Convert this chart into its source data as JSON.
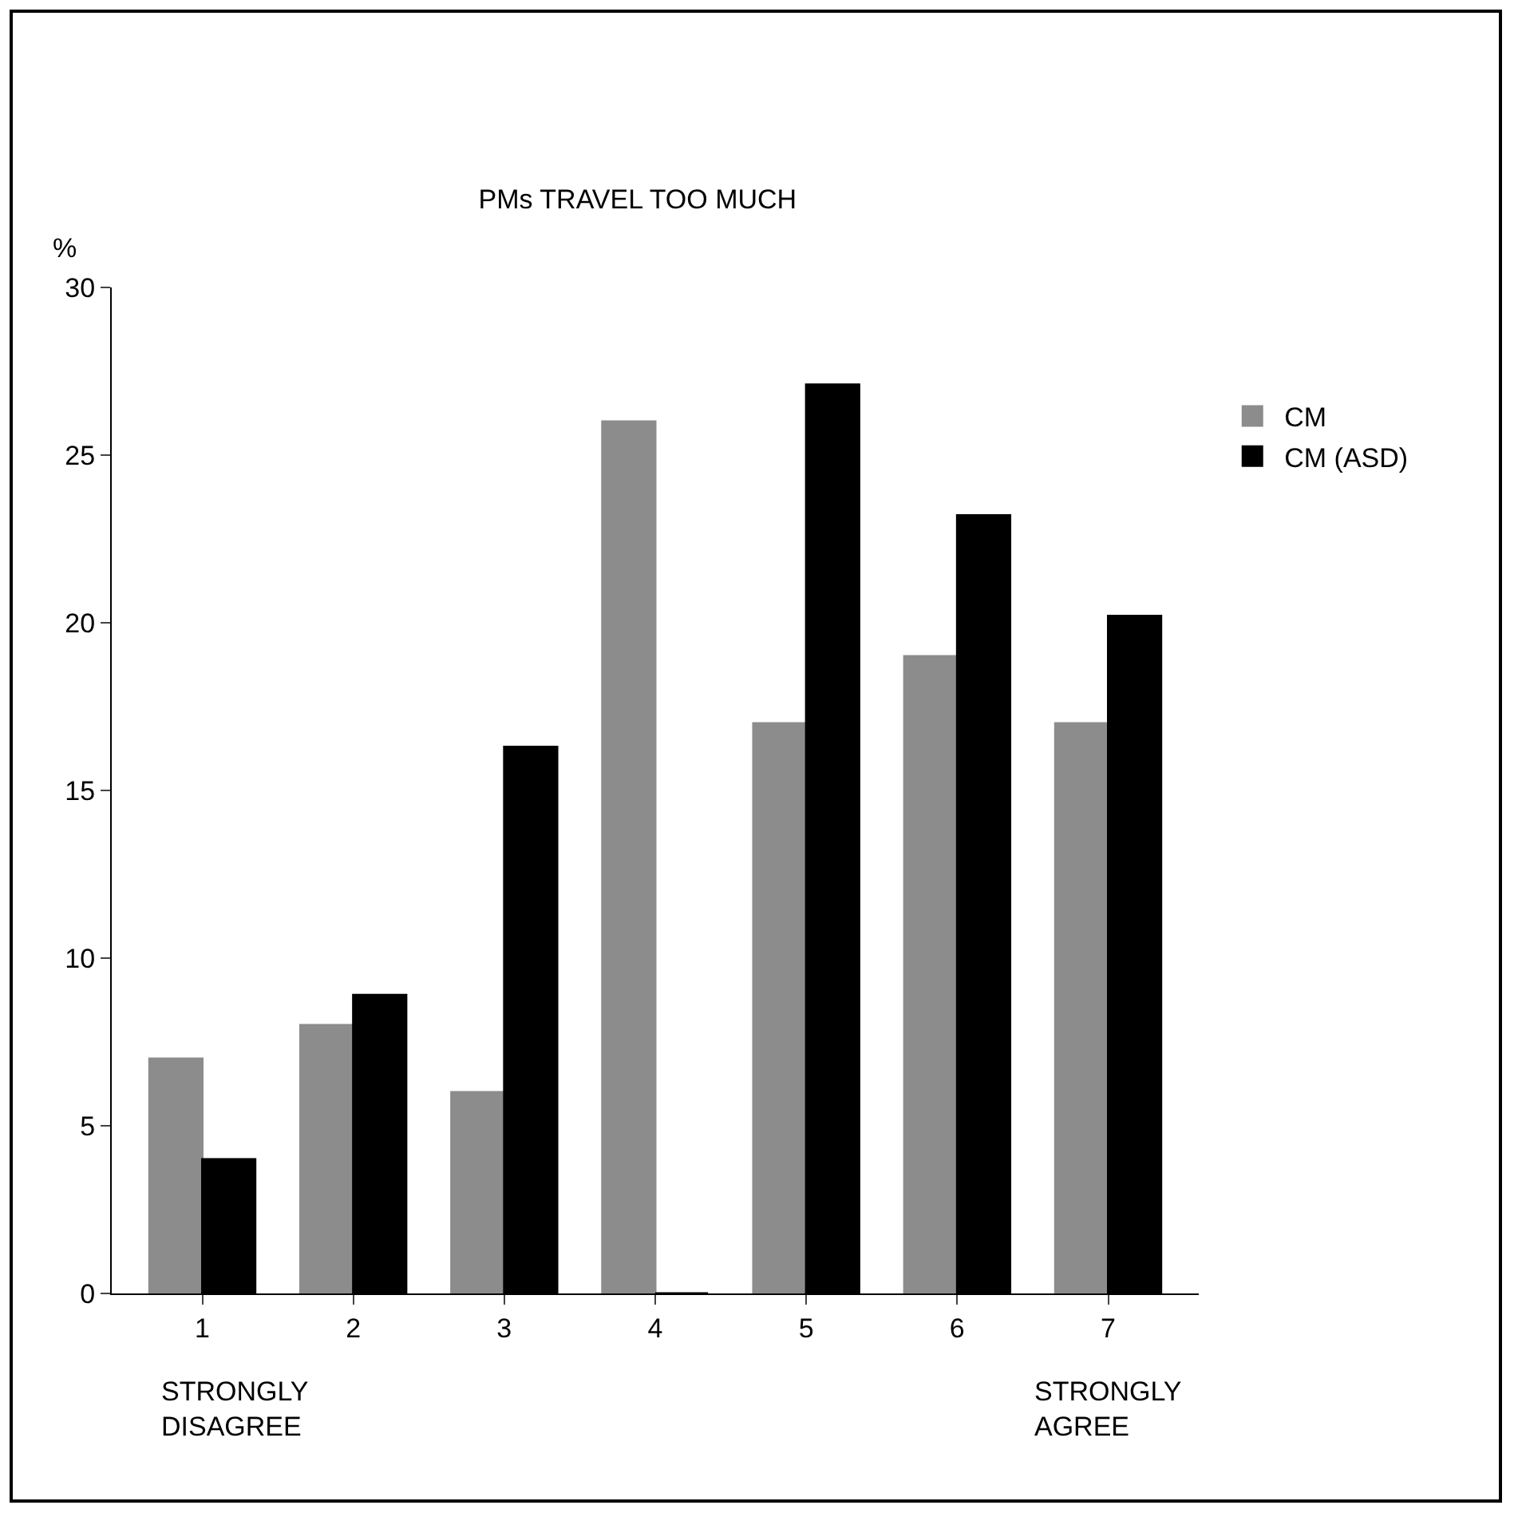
{
  "chart_data": {
    "type": "bar",
    "title": "PMs TRAVEL TOO MUCH",
    "ylabel": "%",
    "categories": [
      "1",
      "2",
      "3",
      "4",
      "5",
      "6",
      "7"
    ],
    "series": [
      {
        "name": "CM",
        "color": "#8c8c8c",
        "values": [
          7,
          8,
          6,
          26,
          17,
          19,
          17
        ]
      },
      {
        "name": "CM (ASD)",
        "color": "#000000",
        "values": [
          4,
          8.9,
          16.3,
          0,
          27.1,
          23.2,
          20.2
        ]
      }
    ],
    "ylim": [
      0,
      30
    ],
    "yticks": [
      0,
      5,
      10,
      15,
      20,
      25,
      30
    ],
    "grid": false,
    "legend": "top right",
    "annotations": [
      "STRONGLY DISAGREE",
      "STRONGLY AGREE"
    ]
  }
}
